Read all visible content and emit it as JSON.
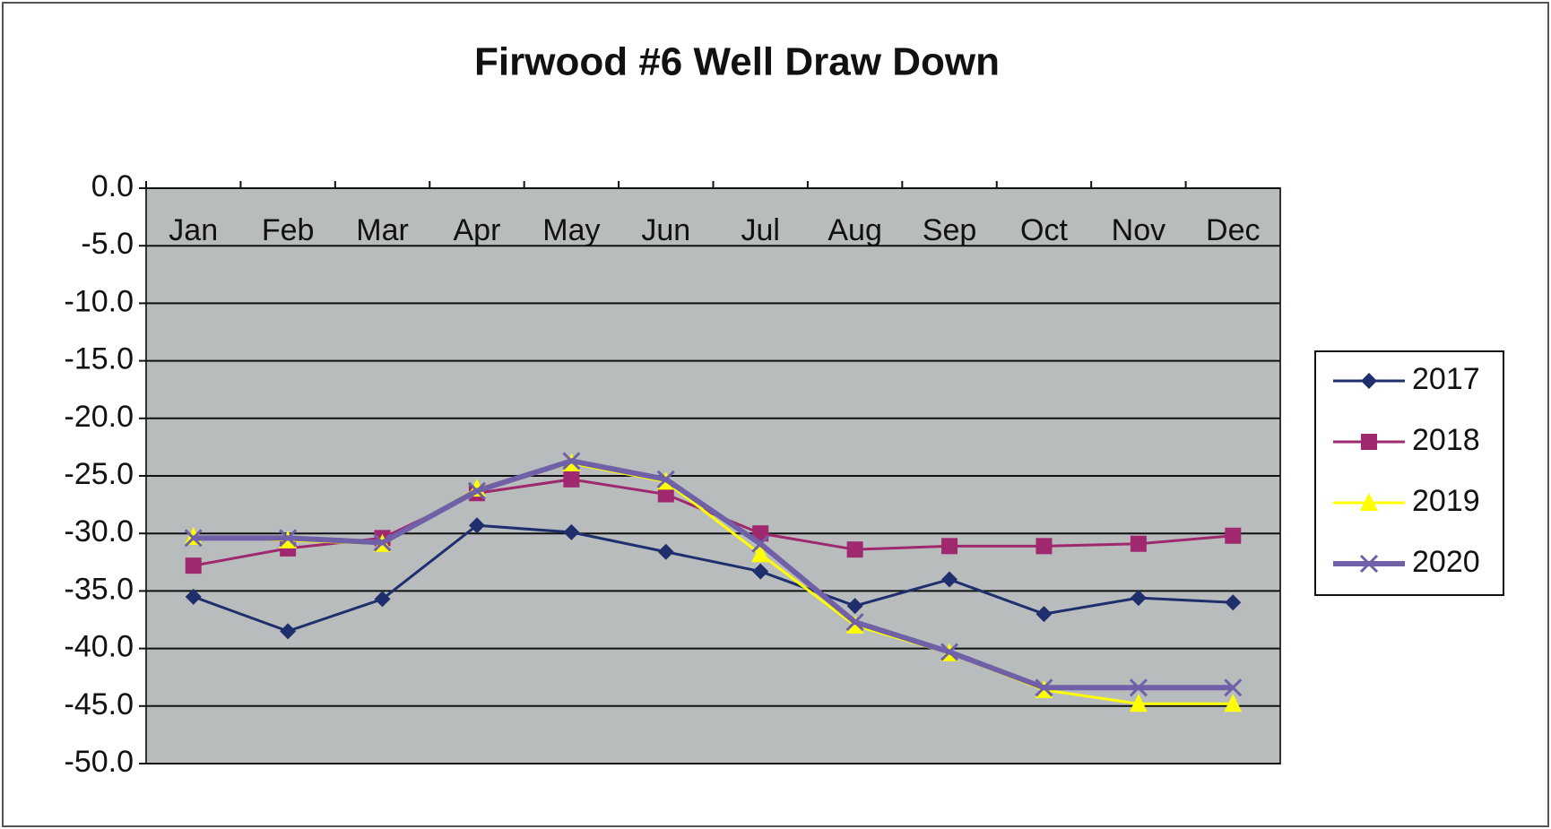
{
  "chart_data": {
    "type": "line",
    "title": "Firwood #6 Well Draw Down",
    "categories": [
      "Jan",
      "Feb",
      "Mar",
      "Apr",
      "May",
      "Jun",
      "Jul",
      "Aug",
      "Sep",
      "Oct",
      "Nov",
      "Dec"
    ],
    "series": [
      {
        "name": "2017",
        "color": "#1f2f6e",
        "marker": "diamond",
        "values": [
          -35.5,
          -38.5,
          -35.7,
          -29.3,
          -29.9,
          -31.6,
          -33.3,
          -36.3,
          -34.0,
          -37.0,
          -35.6,
          -36.0
        ]
      },
      {
        "name": "2018",
        "color": "#a0286e",
        "marker": "square",
        "values": [
          -32.8,
          -31.3,
          -30.4,
          -26.5,
          -25.3,
          -26.6,
          -30.0,
          -31.4,
          -31.1,
          -31.1,
          -30.9,
          -30.2
        ]
      },
      {
        "name": "2019",
        "color": "#ffff00",
        "marker": "triangle",
        "values": [
          -30.3,
          -30.6,
          -30.9,
          -26.1,
          -23.9,
          -25.5,
          -31.8,
          -38.0,
          -40.4,
          -43.6,
          -44.8,
          -44.8
        ]
      },
      {
        "name": "2020",
        "color": "#7060a8",
        "marker": "x",
        "values": [
          -30.4,
          -30.4,
          -30.8,
          -26.3,
          -23.7,
          -25.3,
          -30.9,
          -37.7,
          -40.3,
          -43.4,
          -43.4,
          -43.4
        ]
      }
    ],
    "ylim": [
      -50,
      0
    ],
    "yticks": [
      {
        "value": 0,
        "label": "0.0"
      },
      {
        "value": -5,
        "label": "-5.0"
      },
      {
        "value": -10,
        "label": "-10.0"
      },
      {
        "value": -15,
        "label": "-15.0"
      },
      {
        "value": -20,
        "label": "-20.0"
      },
      {
        "value": -25,
        "label": "-25.0"
      },
      {
        "value": -30,
        "label": "-30.0"
      },
      {
        "value": -35,
        "label": "-35.0"
      },
      {
        "value": -40,
        "label": "-40.0"
      },
      {
        "value": -45,
        "label": "-45.0"
      },
      {
        "value": -50,
        "label": "-50.0"
      }
    ],
    "grid": true,
    "legend": "right"
  }
}
